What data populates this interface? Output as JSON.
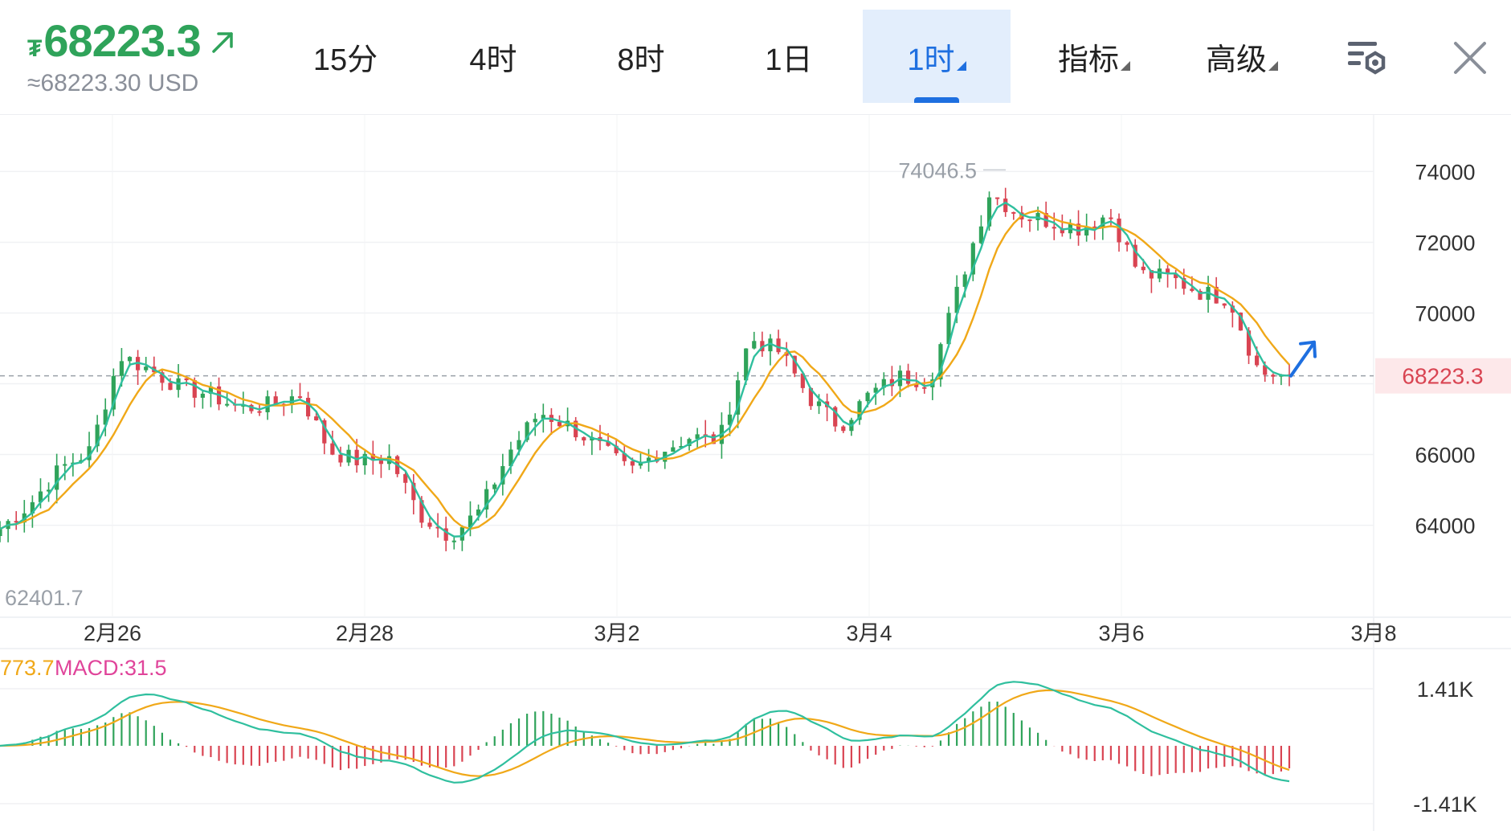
{
  "header": {
    "currency_symbol": "₮",
    "price": "68223.3",
    "price_usd": "≈68223.30 USD",
    "tabs": [
      {
        "label": "15分",
        "has_dropdown": false,
        "active": false
      },
      {
        "label": "4时",
        "has_dropdown": false,
        "active": false
      },
      {
        "label": "8时",
        "has_dropdown": false,
        "active": false
      },
      {
        "label": "1日",
        "has_dropdown": false,
        "active": false
      },
      {
        "label": "1时",
        "has_dropdown": true,
        "active": true
      },
      {
        "label": "指标",
        "has_dropdown": true,
        "active": false
      },
      {
        "label": "高级",
        "has_dropdown": true,
        "active": false
      }
    ],
    "icons": [
      "chart-settings-icon",
      "close-icon"
    ]
  },
  "colors": {
    "up": "#2fa35a",
    "down": "#d94452",
    "accent": "#1e6fe0",
    "ma_fast": "#2fbf9e",
    "ma_slow": "#f0a818",
    "macd_label": "#e0449a"
  },
  "chart_data": [
    {
      "type": "candlestick",
      "interval": "1时",
      "x_ticks": [
        "2月26",
        "2月28",
        "3月2",
        "3月4",
        "3月6",
        "3月8"
      ],
      "y_ticks": [
        "74000",
        "72000",
        "70000",
        "66000",
        "64000"
      ],
      "ylim": [
        61400,
        75600
      ],
      "current_price": "68223.3",
      "high_label": "74046.5",
      "low_label": "62401.7",
      "grid": true,
      "series": [
        {
          "name": "close",
          "points": [
            [
              "2月25",
              63900
            ],
            [
              "2月25",
              64600
            ],
            [
              "2月25",
              65600
            ],
            [
              "2月25",
              66100
            ],
            [
              "2月26",
              68800
            ],
            [
              "2月26",
              68400
            ],
            [
              "2月26",
              67900
            ],
            [
              "2月26",
              67700
            ],
            [
              "2月27",
              67300
            ],
            [
              "2月27",
              67400
            ],
            [
              "2月27",
              67700
            ],
            [
              "2月27",
              66100
            ],
            [
              "2月28",
              65800
            ],
            [
              "2月28",
              65900
            ],
            [
              "2月28",
              64300
            ],
            [
              "2月28",
              63700
            ],
            [
              "3月1",
              64400
            ],
            [
              "3月1",
              66100
            ],
            [
              "3月1",
              67200
            ],
            [
              "3月1",
              66800
            ],
            [
              "3月2",
              66200
            ],
            [
              "3月2",
              65500
            ],
            [
              "3月2",
              66100
            ],
            [
              "3月2",
              66500
            ],
            [
              "3月3",
              66400
            ],
            [
              "3月3",
              69300
            ],
            [
              "3月3",
              68900
            ],
            [
              "3月3",
              67600
            ],
            [
              "3月4",
              66800
            ],
            [
              "3月4",
              67700
            ],
            [
              "3月4",
              68200
            ],
            [
              "3月4",
              68100
            ],
            [
              "3月5",
              70800
            ],
            [
              "3月5",
              73400
            ],
            [
              "3月5",
              72800
            ],
            [
              "3月5",
              72600
            ],
            [
              "3月6",
              72400
            ],
            [
              "3月6",
              72800
            ],
            [
              "3月6",
              71100
            ],
            [
              "3月6",
              71000
            ],
            [
              "3月7",
              70600
            ],
            [
              "3月7",
              70400
            ],
            [
              "3月7",
              68300
            ],
            [
              "3月7",
              68223.3
            ]
          ]
        }
      ]
    },
    {
      "type": "bar",
      "indicator": "MACD",
      "labels": [
        "773.7",
        "MACD:31.5"
      ],
      "y_ticks": [
        "1.41K",
        "-1.41K"
      ],
      "ylim": [
        -1410,
        1410
      ]
    }
  ]
}
